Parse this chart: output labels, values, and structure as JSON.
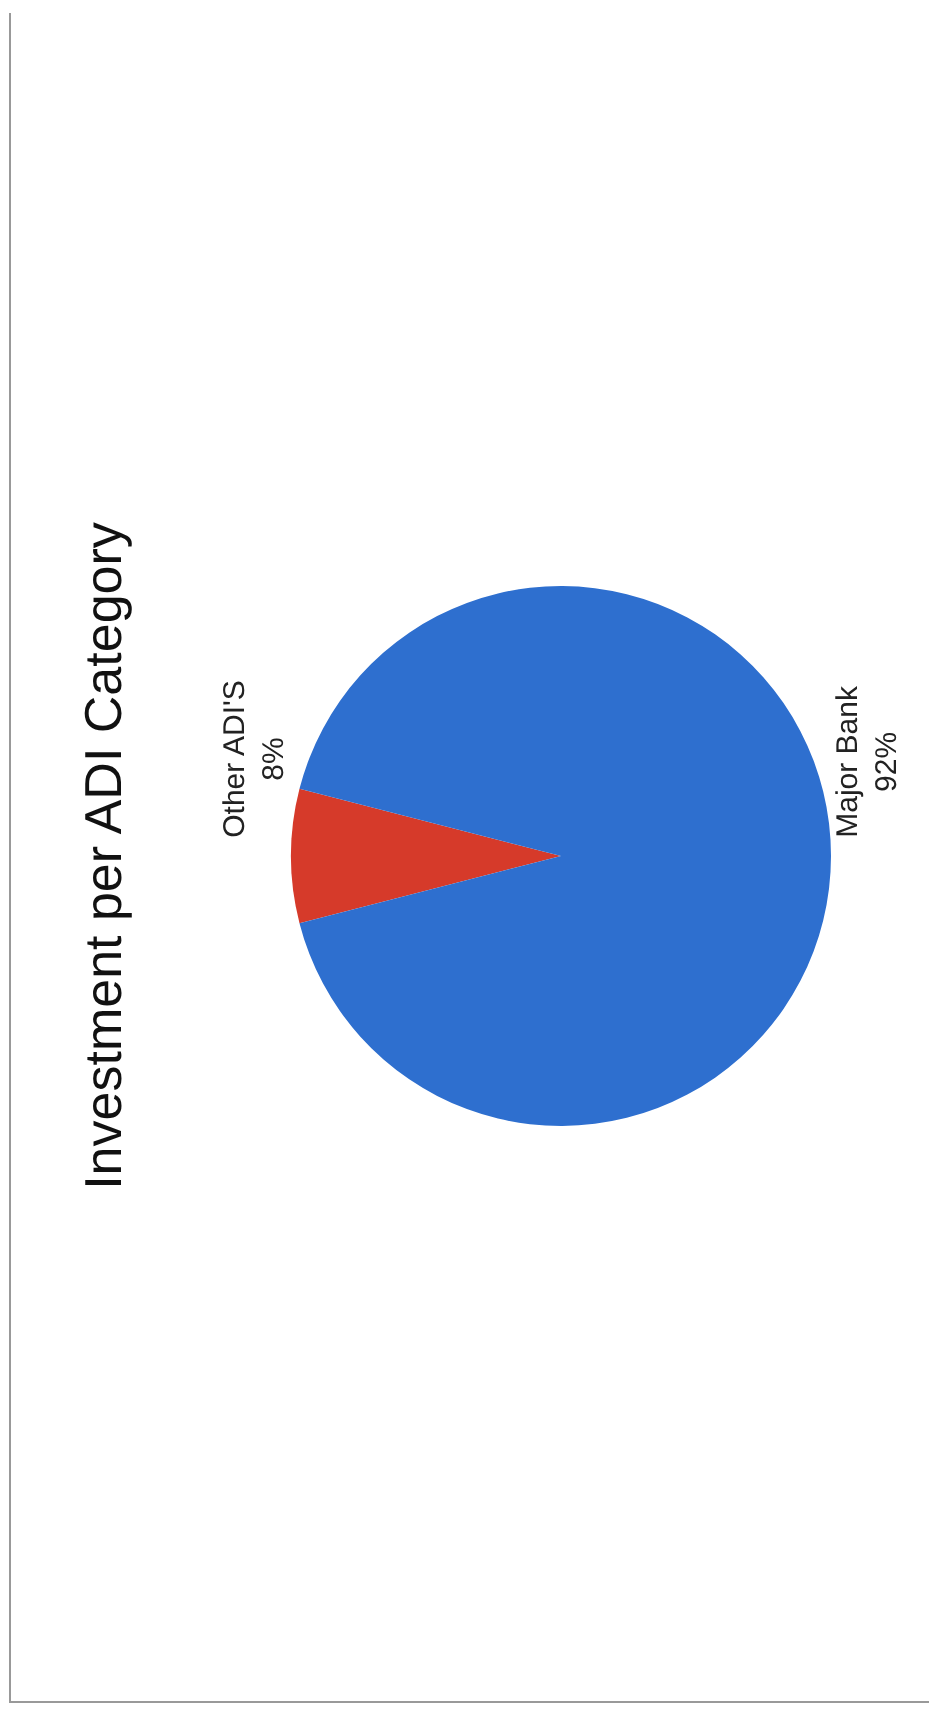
{
  "chart_data": {
    "type": "pie",
    "title": "Investment per ADI Category",
    "categories": [
      "Other ADI'S",
      "Major Bank"
    ],
    "values": [
      8,
      92
    ],
    "colors": [
      "#d63a2a",
      "#2e6fcf"
    ],
    "value_labels": [
      "8%",
      "92%"
    ],
    "legend": false
  }
}
